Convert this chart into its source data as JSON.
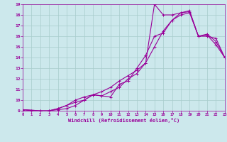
{
  "xlabel": "Windchill (Refroidissement éolien,°C)",
  "bg_color": "#cce8ec",
  "grid_color": "#a8cccc",
  "line_color": "#990099",
  "xlim": [
    0,
    23
  ],
  "ylim": [
    9,
    19
  ],
  "xticks": [
    0,
    1,
    2,
    3,
    4,
    5,
    6,
    7,
    8,
    9,
    10,
    11,
    12,
    13,
    14,
    15,
    16,
    17,
    18,
    19,
    20,
    21,
    22,
    23
  ],
  "yticks": [
    9,
    10,
    11,
    12,
    13,
    14,
    15,
    16,
    17,
    18,
    19
  ],
  "line1_x": [
    0,
    1,
    2,
    3,
    4,
    5,
    6,
    7,
    8,
    9,
    10,
    11,
    12,
    13,
    14,
    15,
    16,
    17,
    18,
    19,
    20,
    21,
    22,
    23
  ],
  "line1_y": [
    9.1,
    9.0,
    8.8,
    9.0,
    9.1,
    9.2,
    9.5,
    10.0,
    10.5,
    10.4,
    10.3,
    11.5,
    11.8,
    13.0,
    14.2,
    16.0,
    16.3,
    17.5,
    18.2,
    18.3,
    16.0,
    16.1,
    15.2,
    14.0
  ],
  "line2_x": [
    0,
    2,
    3,
    4,
    5,
    6,
    7,
    8,
    9,
    10,
    11,
    12,
    13,
    14,
    15,
    16,
    17,
    18,
    19,
    20,
    21,
    22,
    23
  ],
  "line2_y": [
    9.1,
    9.0,
    9.0,
    9.2,
    9.5,
    9.8,
    10.0,
    10.5,
    10.4,
    10.8,
    11.2,
    12.0,
    12.5,
    13.5,
    15.0,
    16.5,
    17.5,
    18.0,
    18.2,
    16.0,
    16.0,
    15.8,
    14.0
  ],
  "line3_x": [
    0,
    2,
    3,
    4,
    5,
    6,
    7,
    8,
    9,
    10,
    11,
    12,
    13,
    14,
    15,
    16,
    17,
    18,
    19,
    20,
    21,
    22,
    23
  ],
  "line3_y": [
    9.1,
    9.0,
    9.0,
    9.2,
    9.5,
    10.0,
    10.3,
    10.5,
    10.8,
    11.2,
    11.8,
    12.3,
    12.8,
    13.5,
    19.0,
    18.0,
    18.0,
    18.2,
    18.4,
    16.0,
    16.2,
    15.5,
    14.0
  ]
}
